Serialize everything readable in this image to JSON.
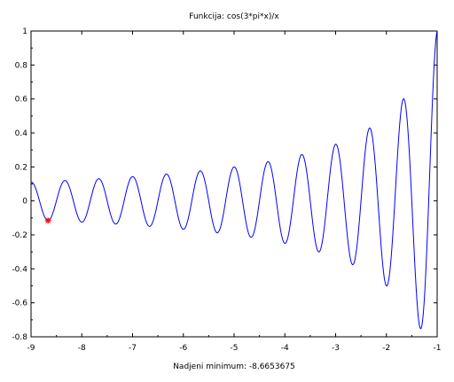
{
  "chart_data": {
    "type": "line",
    "title": "Funkcija: cos(3*pi*x)/x",
    "xlabel": "Nadjeni minimum: -8.6653675",
    "ylabel": "",
    "xlim": [
      -9,
      -1
    ],
    "ylim": [
      -0.8,
      1
    ],
    "xticks": [
      -9,
      -8,
      -7,
      -6,
      -5,
      -4,
      -3,
      -2,
      -1
    ],
    "yticks": [
      -0.8,
      -0.6,
      -0.4,
      -0.2,
      0,
      0.2,
      0.4,
      0.6,
      0.8,
      1
    ],
    "xtick_labels": [
      "-9",
      "-8",
      "-7",
      "-6",
      "-5",
      "-4",
      "-3",
      "-2",
      "-1"
    ],
    "ytick_labels": [
      "-0.8",
      "-0.6",
      "-0.4",
      "-0.2",
      "0",
      "0.2",
      "0.4",
      "0.6",
      "0.8",
      "1"
    ],
    "grid": false,
    "series": [
      {
        "function": "cos(3*pi*x)/x",
        "color": "#0000ff"
      }
    ],
    "marker": {
      "x": -8.6653675,
      "y": -0.1154,
      "symbol": "*",
      "color": "#ff0000"
    }
  }
}
